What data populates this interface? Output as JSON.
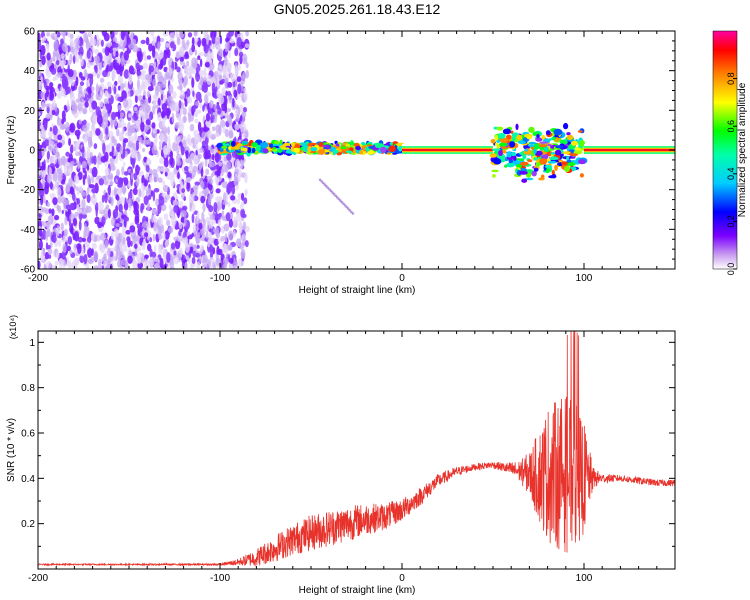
{
  "title": "GN05.2025.261.18.43.E12",
  "chart_data": [
    {
      "type": "heatmap",
      "name": "spectrogram",
      "xlabel": "Height of straight line (km)",
      "ylabel": "Frequency (Hz)",
      "xlim": [
        -200,
        150
      ],
      "ylim": [
        -60,
        60
      ],
      "xticks": [
        -200,
        -100,
        0,
        100
      ],
      "yticks": [
        -60,
        -40,
        -20,
        0,
        20,
        40,
        60
      ],
      "colorbar": {
        "label": "Normalized spectral amplitude",
        "range": [
          0,
          1
        ],
        "ticks": [
          0.0,
          0.2,
          0.4,
          0.6,
          0.8
        ],
        "tick_labels": [
          "0.0",
          "0.2",
          "0.4",
          "0.6",
          "0.8"
        ],
        "colors": [
          "#ffffff",
          "#7b00ff",
          "#0000ff",
          "#00ffff",
          "#00ff00",
          "#ffff00",
          "#ff8000",
          "#ff0000",
          "#ff00a0"
        ]
      },
      "regions": [
        {
          "label": "diffuse noise",
          "x": [
            -200,
            -85
          ],
          "freq": [
            -60,
            60
          ],
          "amplitude": [
            0.05,
            0.15
          ]
        },
        {
          "label": "scattered tone",
          "x": [
            -100,
            0
          ],
          "freq": [
            -2,
            4
          ],
          "amplitude": [
            0.1,
            0.9
          ]
        },
        {
          "label": "steady tone",
          "x": [
            0,
            50
          ],
          "freq": [
            0,
            0
          ],
          "amplitude": [
            0.9,
            1.0
          ]
        },
        {
          "label": "scattered tone",
          "x": [
            50,
            100
          ],
          "freq": [
            -16,
            14
          ],
          "amplitude": [
            0.1,
            0.9
          ]
        },
        {
          "label": "steady tone",
          "x": [
            100,
            150
          ],
          "freq": [
            0,
            0
          ],
          "amplitude": [
            0.9,
            1.0
          ]
        },
        {
          "label": "faint streak",
          "x": [
            -45,
            -27
          ],
          "freq": [
            -32,
            -15
          ],
          "amplitude": [
            0.1,
            0.2
          ]
        }
      ]
    },
    {
      "type": "line",
      "name": "snr",
      "xlabel": "Height of straight line (km)",
      "ylabel": "SNR (10 * v/v)",
      "y_multiplier": "(x10⁴)",
      "xlim": [
        -200,
        150
      ],
      "ylim": [
        0,
        1.05
      ],
      "xticks": [
        -200,
        -100,
        0,
        100
      ],
      "yticks": [
        0.2,
        0.4,
        0.6,
        0.8,
        1.0
      ],
      "series": [
        {
          "name": "SNR",
          "color": "#e8332c",
          "x": [
            -200,
            -150,
            -100,
            -90,
            -80,
            -70,
            -60,
            -50,
            -40,
            -30,
            -20,
            -10,
            0,
            10,
            20,
            30,
            40,
            50,
            55,
            60,
            65,
            70,
            75,
            80,
            85,
            90,
            95,
            100,
            105,
            110,
            120,
            130,
            140,
            150
          ],
          "y": [
            0.02,
            0.02,
            0.02,
            0.03,
            0.05,
            0.09,
            0.13,
            0.16,
            0.18,
            0.2,
            0.22,
            0.23,
            0.26,
            0.32,
            0.39,
            0.43,
            0.45,
            0.46,
            0.45,
            0.44,
            0.43,
            0.42,
            0.41,
            0.42,
            0.42,
            0.42,
            0.41,
            0.4,
            0.4,
            0.4,
            0.4,
            0.39,
            0.38,
            0.38
          ],
          "spread": [
            0.003,
            0.003,
            0.004,
            0.015,
            0.04,
            0.06,
            0.07,
            0.08,
            0.08,
            0.08,
            0.07,
            0.06,
            0.05,
            0.04,
            0.03,
            0.02,
            0.015,
            0.015,
            0.02,
            0.03,
            0.05,
            0.1,
            0.2,
            0.3,
            0.33,
            0.35,
            0.33,
            0.25,
            0.05,
            0.02,
            0.015,
            0.015,
            0.015,
            0.015
          ]
        }
      ]
    }
  ]
}
